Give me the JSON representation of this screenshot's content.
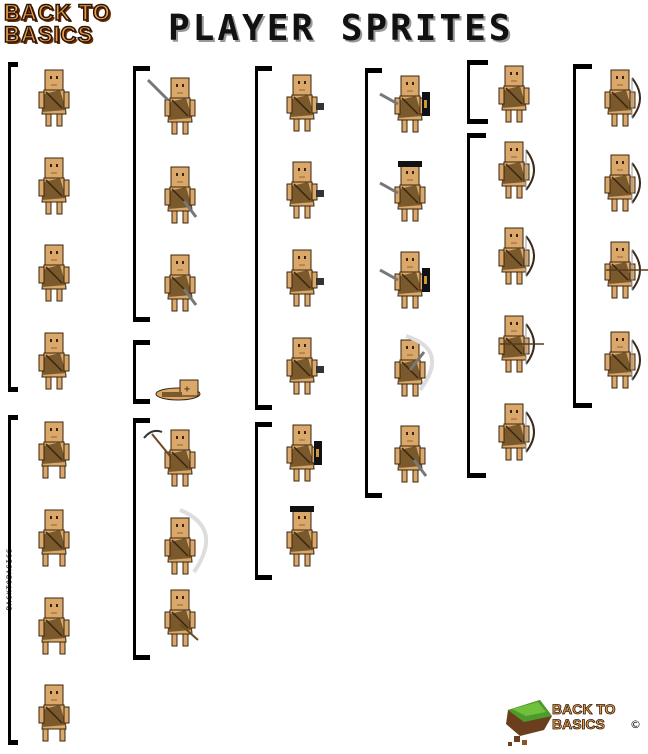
{
  "logo": {
    "line1": "BACK TO",
    "line2": "BASICS"
  },
  "title": "PLAYER SPRITES",
  "watermark": "BACKTOBASICS",
  "footer_logo": {
    "line1": "BACK TO",
    "line2": "BASICS",
    "copyright": "©"
  },
  "colors": {
    "skin": "#d9a86a",
    "skin_dark": "#b9854a",
    "tunic": "#7a5a2c",
    "outline": "#3a2410",
    "bracket": "#000000"
  },
  "sprite_groups": [
    {
      "name": "idle",
      "sprites": [
        "idle",
        "idle",
        "idle",
        "idle"
      ]
    },
    {
      "name": "walk",
      "sprites": [
        "walk",
        "walk",
        "walk",
        "walk"
      ]
    },
    {
      "name": "sword",
      "sprites": [
        "sword-raised",
        "sword-down",
        "sword-down"
      ]
    },
    {
      "name": "death",
      "sprites": [
        "dead"
      ]
    },
    {
      "name": "pickaxe",
      "sprites": [
        "pick-raised",
        "pick-swing",
        "pick-down"
      ]
    },
    {
      "name": "hammer",
      "sprites": [
        "hammer",
        "hammer",
        "hammer",
        "hammer"
      ]
    },
    {
      "name": "shield",
      "sprites": [
        "shield",
        "shield-top"
      ]
    },
    {
      "name": "sword-shield",
      "sprites": [
        "sword-shield",
        "sword-shield-top",
        "sword-shield",
        "swing",
        "sword-down"
      ]
    },
    {
      "name": "bow-idle",
      "sprites": [
        "idle"
      ]
    },
    {
      "name": "bow",
      "sprites": [
        "bow",
        "bow",
        "bow-draw",
        "bow"
      ]
    },
    {
      "name": "bow-aim",
      "sprites": [
        "bow",
        "bow",
        "bow-draw",
        "bow"
      ]
    }
  ]
}
